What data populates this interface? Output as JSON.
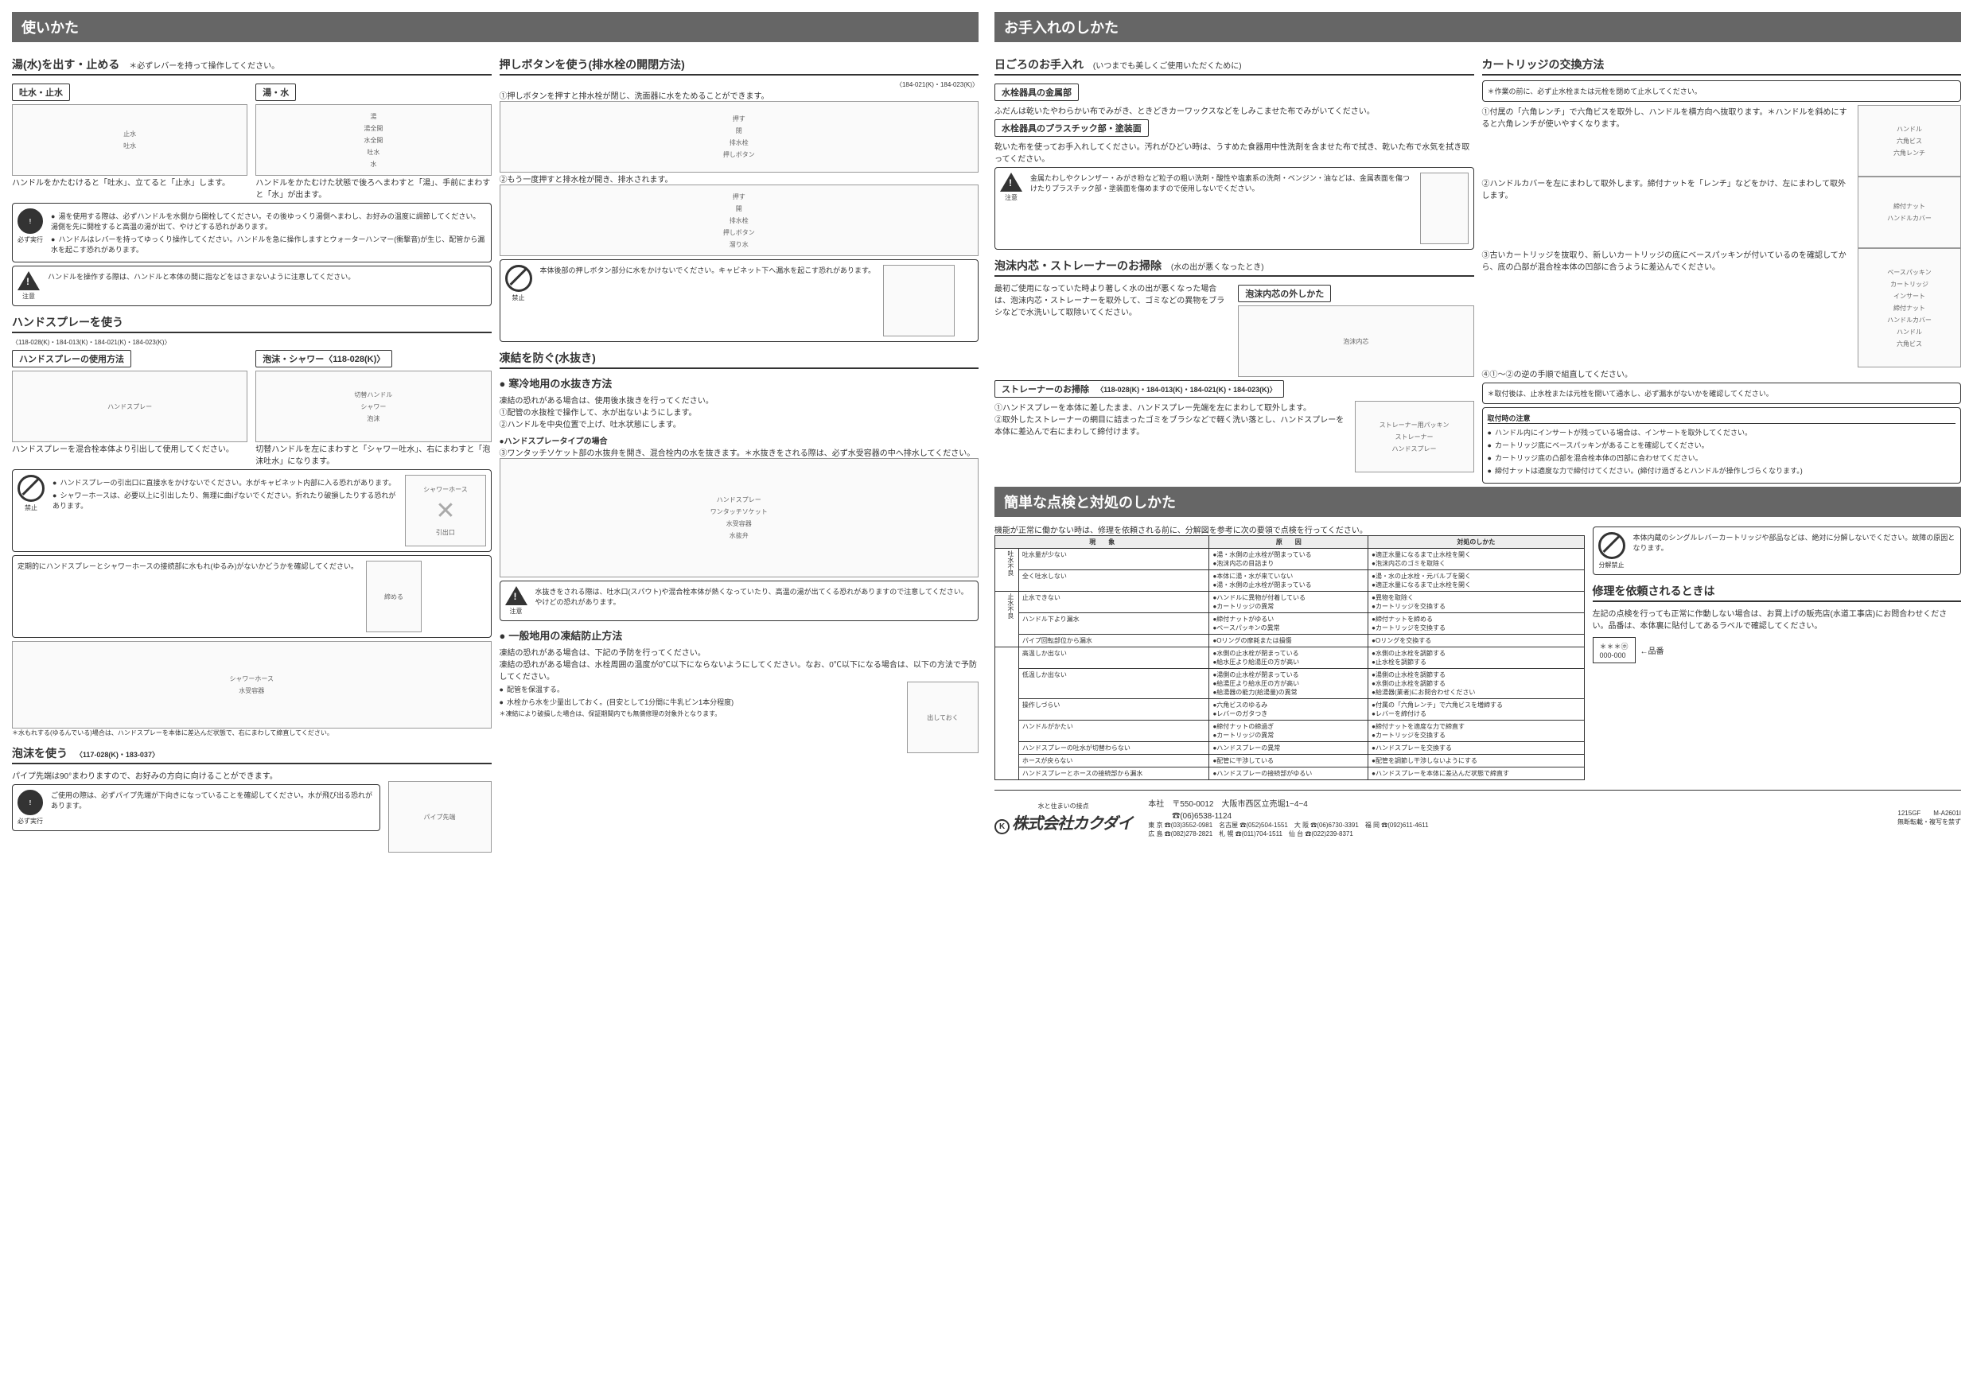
{
  "headers": {
    "usage": "使いかた",
    "maintenance": "お手入れのしかた",
    "troubleshoot": "簡単な点検と対処のしかた"
  },
  "sections": {
    "flow": {
      "title": "湯(水)を出す・止める",
      "sub": "＊必ずレバーを持って操作してください。",
      "box1_title": "吐水・止水",
      "box1_text": "ハンドルをかたむけると「吐水」、立てると「止水」します。",
      "box1_labels": [
        "止水",
        "吐水"
      ],
      "box2_title": "湯・水",
      "box2_text": "ハンドルをかたむけた状態で後ろへまわすと「湯」、手前にまわすと「水」が出ます。",
      "box2_labels": [
        "湯",
        "湯全開",
        "水全開",
        "吐水",
        "水"
      ],
      "warnings": [
        "湯を使用する際は、必ずハンドルを水側から開栓してください。その後ゆっくり湯側へまわし、お好みの温度に調節してください。湯側を先に開栓すると高温の湯が出て、やけどする恐れがあります。",
        "ハンドルはレバーを持ってゆっくり操作してください。ハンドルを急に操作しますとウォーターハンマー(衝撃音)が生じ、配管から漏水を起こす恐れがあります。"
      ],
      "caution": "ハンドルを操作する際は、ハンドルと本体の間に指などをはさまないように注意してください。",
      "warn_label": "必ず実行",
      "caution_label": "注意"
    },
    "handspray": {
      "title": "ハンドスプレーを使う",
      "models": "〈118-028(K)・184-013(K)・184-021(K)・184-023(K)〉",
      "box1_title": "ハンドスプレーの使用方法",
      "box1_text": "ハンドスプレーを混合栓本体より引出して使用してください。",
      "box1_label": "ハンドスプレー",
      "box2_title": "泡沫・シャワー〈118-028(K)〉",
      "box2_text": "切替ハンドルを左にまわすと「シャワー吐水」、右にまわすと「泡沫吐水」になります。",
      "box2_labels": [
        "切替ハンドル",
        "シャワー",
        "泡沫"
      ],
      "prohibit1": [
        "ハンドスプレーの引出口に直接水をかけないでください。水がキャビネット内部に入る恐れがあります。",
        "シャワーホースは、必要以上に引出したり、無理に曲げないでください。折れたり破損したりする恐れがあります。"
      ],
      "prohibit_label": "禁止",
      "hose_labels": [
        "シャワーホース",
        "引出口"
      ],
      "tighten_box": "定期的にハンドスプレーとシャワーホースの接続部に水もれ(ゆるみ)がないかどうかを確認してください。",
      "tighten_label": "締める",
      "tighten_labels": [
        "シャワーホース",
        "水受容器"
      ],
      "loose_note": "＊水もれする(ゆるんでいる)場合は、ハンドスプレーを本体に差込んだ状態で、右にまわして締直してください。"
    },
    "foam": {
      "title": "泡沫を使う",
      "models": "〈117-028(K)・183-037〉",
      "text": "パイプ先端は90°まわりますので、お好みの方向に向けることができます。",
      "warn": "ご使用の際は、必ずパイプ先端が下向きになっていることを確認してください。水が飛び出る恐れがあります。",
      "warn_label": "必ず実行",
      "label": "パイプ先端"
    },
    "pushbutton": {
      "title": "押しボタンを使う(排水栓の開閉方法)",
      "models": "〈184-021(K)・184-023(K)〉",
      "step1": "①押しボタンを押すと排水栓が閉じ、洗面器に水をためることができます。",
      "step2": "②もう一度押すと排水栓が開き、排水されます。",
      "labels": [
        "押す",
        "閉",
        "排水栓",
        "押しボタン",
        "開",
        "溜り水"
      ],
      "prohibit": "本体後部の押しボタン部分に水をかけないでください。キャビネット下へ漏水を起こす恐れがあります。",
      "prohibit_label": "禁止"
    },
    "freeze": {
      "title": "凍結を防ぐ(水抜き)",
      "cold_title": "寒冷地用の水抜き方法",
      "cold_intro": "凍結の恐れがある場合は、使用後水抜きを行ってください。",
      "cold_steps": [
        "①配管の水抜栓で操作して、水が出ないようにします。",
        "②ハンドルを中央位置で上げ、吐水状態にします。"
      ],
      "cold_sub": "●ハンドスプレータイプの場合",
      "cold_sub_steps": [
        "③ワンタッチソケット部の水抜弁を開き、混合栓内の水を抜きます。＊水抜きをされる際は、必ず水受容器の中へ排水してください。"
      ],
      "cold_labels": [
        "ハンドスプレー",
        "ワンタッチソケット",
        "水受容器",
        "水抜弁"
      ],
      "cold_caution": "水抜きをされる際は、吐水口(スパウト)や混合栓本体が熱くなっていたり、高温の湯が出てくる恐れがありますので注意してください。やけどの恐れがあります。",
      "caution_label": "注意",
      "gen_title": "一般地用の凍結防止方法",
      "gen_intro": "凍結の恐れがある場合は、下記の予防を行ってください。",
      "gen_text": "凍結の恐れがある場合は、水栓周囲の温度が0℃以下にならないようにしてください。なお、0℃以下になる場合は、以下の方法で予防してください。",
      "gen_items": [
        "配管を保温する。",
        "水栓から水を少量出しておく。(目安として1分間に牛乳ビン1本分程度)"
      ],
      "gen_note": "＊凍結により破損した場合は、保証期間内でも無償修理の対象外となります。",
      "gen_label": "出しておく"
    },
    "daily": {
      "title": "日ごろのお手入れ",
      "sub": "(いつまでも美しくご使用いただくために)",
      "metal_title": "水栓器具の金属部",
      "metal_text": "ふだんは乾いたやわらかい布でみがき、ときどきカーワックスなどをしみこませた布でみがいてください。",
      "plastic_title": "水栓器具のプラスチック部・塗装面",
      "plastic_text": "乾いた布を使ってお手入れしてください。汚れがひどい時は、うすめた食器用中性洗剤を含ませた布で拭き、乾いた布で水気を拭き取ってください。",
      "caution": "金属たわしやクレンザー・みがき粉など粒子の粗い洗剤・酸性や塩素系の洗剤・ベンジン・油などは、金属表面を傷つけたりプラスチック部・塗装面を傷めますので使用しないでください。",
      "caution_label": "注意"
    },
    "aerator": {
      "title": "泡沫内芯・ストレーナーのお掃除",
      "sub": "(水の出が悪くなったとき)",
      "sub1_title": "泡沫内芯の外しかた",
      "sub1_text": "最初ご使用になっていた時より著しく水の出が悪くなった場合は、泡沫内芯・ストレーナーを取外して、ゴミなどの異物をブラシなどで水洗いして取除いてください。",
      "sub1_label": "泡沫内芯",
      "sub2_title": "ストレーナーのお掃除",
      "sub2_models": "〈118-028(K)・184-013(K)・184-021(K)・184-023(K)〉",
      "sub2_steps": [
        "①ハンドスプレーを本体に差したまま、ハンドスプレー先端を左にまわして取外します。",
        "②取外したストレーナーの網目に詰まったゴミをブラシなどで軽く洗い落とし、ハンドスプレーを本体に差込んで右にまわして締付けます。"
      ],
      "sub2_labels": [
        "ストレーナー用パッキン",
        "ストレーナー",
        "ハンドスプレー"
      ]
    },
    "cartridge": {
      "title": "カートリッジの交換方法",
      "pre": "＊作業の前に、必ず止水栓または元栓を閉めて止水してください。",
      "step1": "①付属の「六角レンチ」で六角ビスを取外し、ハンドルを横方向へ抜取ります。＊ハンドルを斜めにすると六角レンチが使いやすくなります。",
      "step1_labels": [
        "ハンドル",
        "六角ビス",
        "六角レンチ"
      ],
      "step2": "②ハンドルカバーを左にまわして取外します。締付ナットを「レンチ」などをかけ、左にまわして取外します。",
      "step2_labels": [
        "締付ナット",
        "ハンドルカバー"
      ],
      "step3": "③古いカートリッジを抜取り、新しいカートリッジの底にベースパッキンが付いているのを確認してから、底の凸部が混合栓本体の凹部に合うように差込んでください。",
      "step3_labels": [
        "ベースパッキン",
        "カートリッジ",
        "インサート",
        "締付ナット",
        "ハンドルカバー",
        "ハンドル",
        "六角ビス"
      ],
      "step4": "④①〜②の逆の手順で組直してください。",
      "post": "＊取付後は、止水栓または元栓を開いて通水し、必ず漏水がないかを確認してください。",
      "install_title": "取付時の注意",
      "install_items": [
        "ハンドル内にインサートが残っている場合は、インサートを取外してください。",
        "カートリッジ底にベースパッキンがあることを確認してください。",
        "カートリッジ底の凸部を混合栓本体の凹部に合わせてください。",
        "締付ナットは適度な力で締付けてください。(締付け過ぎるとハンドルが操作しづらくなります。)"
      ]
    }
  },
  "troubleshoot": {
    "intro": "機能が正常に働かない時は、修理を依頼される前に、分解図を参考に次の要領で点検を行ってください。",
    "headers": [
      "現　　象",
      "原　　因",
      "対処のしかた"
    ],
    "groups": [
      {
        "label": "吐水不良",
        "rows": [
          [
            "吐水量が少ない",
            "●湯・水側の止水栓が閉まっている\n●泡沫内芯の目詰まり",
            "●適正水量になるまで止水栓を開く\n●泡沫内芯のゴミを取除く"
          ],
          [
            "全く吐水しない",
            "●本体に湯・水が来ていない\n●湯・水側の止水栓が閉まっている",
            "●湯・水の止水栓・元バルブを開く\n●適正水量になるまで止水栓を開く"
          ]
        ]
      },
      {
        "label": "止水不良",
        "rows": [
          [
            "止水できない",
            "●ハンドルに異物が付着している\n●カートリッジの異常",
            "●異物を取除く\n●カートリッジを交換する"
          ],
          [
            "ハンドル下より漏水",
            "●締付ナットがゆるい\n●ベースパッキンの異常",
            "●締付ナットを締める\n●カートリッジを交換する"
          ],
          [
            "パイプ回転部位から漏水",
            "●Oリングの摩耗または損傷",
            "●Oリングを交換する"
          ]
        ]
      },
      {
        "label": "",
        "rows": [
          [
            "高温しか出ない",
            "●水側の止水栓が閉まっている\n●給水圧より給湯圧の方が高い",
            "●水側の止水栓を調節する\n●止水栓を調節する"
          ],
          [
            "低温しか出ない",
            "●湯側の止水栓が閉まっている\n●給湯圧より給水圧の方が高い\n●給湯器の能力(給湯量)の異常",
            "●湯側の止水栓を調節する\n●水側の止水栓を調節する\n●給湯器(業者)にお問合わせください"
          ],
          [
            "操作しづらい",
            "●六角ビスのゆるみ\n●レバーのガタつき",
            "●付属の「六角レンチ」で六角ビスを増締する\n●レバーを締付ける"
          ],
          [
            "ハンドルがかたい",
            "●締付ナットの締過ぎ\n●カートリッジの異常",
            "●締付ナットを適度な力で締直す\n●カートリッジを交換する"
          ],
          [
            "ハンドスプレーの吐水が切替わらない",
            "●ハンドスプレーの異常",
            "●ハンドスプレーを交換する"
          ],
          [
            "ホースが戻らない",
            "●配管に干渉している",
            "●配管を調節し干渉しないようにする"
          ],
          [
            "ハンドスプレーとホースの接続部から漏水",
            "●ハンドスプレーの接続部がゆるい",
            "●ハンドスプレーを本体に差込んだ状態で締直す"
          ]
        ]
      }
    ],
    "nowarn": "本体内蔵のシングルレバーカートリッジや部品などは、絶対に分解しないでください。故障の原因となります。",
    "nowarn_label": "分解禁止",
    "repair_title": "修理を依頼されるときは",
    "repair_text": "左記の点検を行っても正常に作動しない場合は、お買上げの販売店(水道工事店)にお問合わせください。品番は、本体裏に貼付してあるラベルで確認してください。",
    "label_box": [
      "＊＊＊㋭",
      "000-000",
      "←品番"
    ]
  },
  "footer": {
    "company_pre": "水と住まいの接点",
    "company": "株式会社カクダイ",
    "hq": "本社　〒550-0012　大阪市西区立売堀1−4−4\n　　　☎(06)6538-1124",
    "branches": [
      "東 京 ☎(03)3552-0981　名古屋 ☎(052)504-1551　大 阪 ☎(06)6730-3391　福 岡 ☎(092)611-4611",
      "広 島 ☎(082)278-2821　札 幌 ☎(011)704-1511　仙 台 ☎(022)239-8371"
    ],
    "code": "1215GF　　M-A2601I",
    "copyright": "無断転載・複写を禁ず"
  }
}
